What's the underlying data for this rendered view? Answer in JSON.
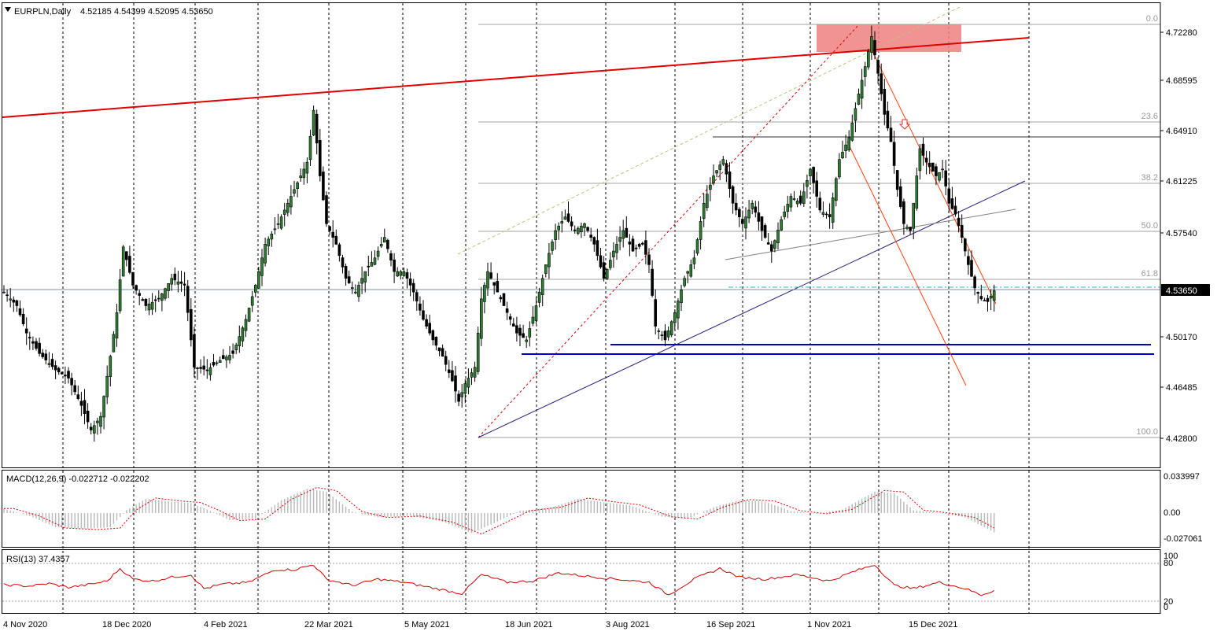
{
  "chart_data": {
    "type": "candlestick",
    "symbol": "EURPLN",
    "timeframe": "Daily",
    "header": {
      "title": "EURPLN,Daily",
      "open": "4.52185",
      "high": "4.54399",
      "low": "4.52095",
      "close": "4.53650"
    },
    "current_price": "4.53650",
    "y_ticks": [
      "4.72280",
      "4.68595",
      "4.64910",
      "4.61225",
      "4.57540",
      "4.50170",
      "4.46485",
      "4.42800"
    ],
    "ylim": [
      4.41,
      4.738
    ],
    "x_ticks": [
      "4 Nov 2020",
      "18 Dec 2020",
      "4 Feb 2021",
      "22 Mar 2021",
      "5 May 2021",
      "18 Jun 2021",
      "3 Aug 2021",
      "16 Sep 2021",
      "1 Nov 2021",
      "15 Dec 2021"
    ],
    "fibonacci": {
      "high": 4.7298,
      "low": 4.4298,
      "levels": [
        {
          "label": "0.0",
          "ratio": 0.0
        },
        {
          "label": "23.6",
          "ratio": 0.236
        },
        {
          "label": "38.2",
          "ratio": 0.382
        },
        {
          "label": "50.0",
          "ratio": 0.5
        },
        {
          "label": "61.8",
          "ratio": 0.618
        },
        {
          "label": "100.0",
          "ratio": 1.0
        }
      ]
    },
    "price_path": [
      {
        "x": 0,
        "y": 4.535
      },
      {
        "x": 4,
        "y": 4.525
      },
      {
        "x": 7,
        "y": 4.505
      },
      {
        "x": 11,
        "y": 4.49
      },
      {
        "x": 16,
        "y": 4.478
      },
      {
        "x": 20,
        "y": 4.472
      },
      {
        "x": 24,
        "y": 4.452
      },
      {
        "x": 27,
        "y": 4.434
      },
      {
        "x": 30,
        "y": 4.444
      },
      {
        "x": 33,
        "y": 4.488
      },
      {
        "x": 35,
        "y": 4.52
      },
      {
        "x": 37,
        "y": 4.568
      },
      {
        "x": 40,
        "y": 4.54
      },
      {
        "x": 44,
        "y": 4.525
      },
      {
        "x": 48,
        "y": 4.53
      },
      {
        "x": 52,
        "y": 4.545
      },
      {
        "x": 56,
        "y": 4.54
      },
      {
        "x": 59,
        "y": 4.48
      },
      {
        "x": 63,
        "y": 4.478
      },
      {
        "x": 67,
        "y": 4.485
      },
      {
        "x": 71,
        "y": 4.49
      },
      {
        "x": 75,
        "y": 4.515
      },
      {
        "x": 78,
        "y": 4.54
      },
      {
        "x": 81,
        "y": 4.57
      },
      {
        "x": 85,
        "y": 4.585
      },
      {
        "x": 88,
        "y": 4.6
      },
      {
        "x": 91,
        "y": 4.615
      },
      {
        "x": 94,
        "y": 4.63
      },
      {
        "x": 96,
        "y": 4.668
      },
      {
        "x": 98,
        "y": 4.62
      },
      {
        "x": 100,
        "y": 4.585
      },
      {
        "x": 103,
        "y": 4.57
      },
      {
        "x": 106,
        "y": 4.545
      },
      {
        "x": 109,
        "y": 4.535
      },
      {
        "x": 112,
        "y": 4.55
      },
      {
        "x": 115,
        "y": 4.56
      },
      {
        "x": 118,
        "y": 4.575
      },
      {
        "x": 121,
        "y": 4.55
      },
      {
        "x": 124,
        "y": 4.55
      },
      {
        "x": 127,
        "y": 4.535
      },
      {
        "x": 130,
        "y": 4.515
      },
      {
        "x": 133,
        "y": 4.5
      },
      {
        "x": 136,
        "y": 4.488
      },
      {
        "x": 139,
        "y": 4.47
      },
      {
        "x": 141,
        "y": 4.455
      },
      {
        "x": 143,
        "y": 4.468
      },
      {
        "x": 146,
        "y": 4.48
      },
      {
        "x": 148,
        "y": 4.53
      },
      {
        "x": 150,
        "y": 4.55
      },
      {
        "x": 153,
        "y": 4.535
      },
      {
        "x": 156,
        "y": 4.52
      },
      {
        "x": 159,
        "y": 4.505
      },
      {
        "x": 162,
        "y": 4.5
      },
      {
        "x": 165,
        "y": 4.525
      },
      {
        "x": 168,
        "y": 4.555
      },
      {
        "x": 171,
        "y": 4.58
      },
      {
        "x": 174,
        "y": 4.59
      },
      {
        "x": 177,
        "y": 4.58
      },
      {
        "x": 180,
        "y": 4.585
      },
      {
        "x": 183,
        "y": 4.57
      },
      {
        "x": 186,
        "y": 4.545
      },
      {
        "x": 189,
        "y": 4.565
      },
      {
        "x": 192,
        "y": 4.58
      },
      {
        "x": 195,
        "y": 4.565
      },
      {
        "x": 198,
        "y": 4.57
      },
      {
        "x": 200,
        "y": 4.555
      },
      {
        "x": 202,
        "y": 4.51
      },
      {
        "x": 205,
        "y": 4.5
      },
      {
        "x": 208,
        "y": 4.52
      },
      {
        "x": 211,
        "y": 4.545
      },
      {
        "x": 214,
        "y": 4.56
      },
      {
        "x": 217,
        "y": 4.6
      },
      {
        "x": 220,
        "y": 4.62
      },
      {
        "x": 223,
        "y": 4.632
      },
      {
        "x": 226,
        "y": 4.6
      },
      {
        "x": 229,
        "y": 4.585
      },
      {
        "x": 232,
        "y": 4.6
      },
      {
        "x": 235,
        "y": 4.58
      },
      {
        "x": 238,
        "y": 4.565
      },
      {
        "x": 241,
        "y": 4.588
      },
      {
        "x": 244,
        "y": 4.605
      },
      {
        "x": 247,
        "y": 4.6
      },
      {
        "x": 250,
        "y": 4.625
      },
      {
        "x": 253,
        "y": 4.595
      },
      {
        "x": 256,
        "y": 4.59
      },
      {
        "x": 259,
        "y": 4.632
      },
      {
        "x": 262,
        "y": 4.648
      },
      {
        "x": 265,
        "y": 4.68
      },
      {
        "x": 267,
        "y": 4.7
      },
      {
        "x": 269,
        "y": 4.722
      },
      {
        "x": 271,
        "y": 4.695
      },
      {
        "x": 273,
        "y": 4.665
      },
      {
        "x": 275,
        "y": 4.645
      },
      {
        "x": 277,
        "y": 4.61
      },
      {
        "x": 279,
        "y": 4.585
      },
      {
        "x": 281,
        "y": 4.58
      },
      {
        "x": 284,
        "y": 4.64
      },
      {
        "x": 286,
        "y": 4.63
      },
      {
        "x": 289,
        "y": 4.62
      },
      {
        "x": 291,
        "y": 4.625
      },
      {
        "x": 293,
        "y": 4.6
      },
      {
        "x": 295,
        "y": 4.592
      },
      {
        "x": 297,
        "y": 4.575
      },
      {
        "x": 299,
        "y": 4.555
      },
      {
        "x": 301,
        "y": 4.538
      },
      {
        "x": 303,
        "y": 4.53
      },
      {
        "x": 305,
        "y": 4.528
      },
      {
        "x": 307,
        "y": 4.536
      }
    ],
    "macd": {
      "label": "MACD(12,26,9) -0.022712 -0.022202",
      "y_ticks": [
        "0.033997",
        "0.00",
        "-0.027061"
      ],
      "ylim": [
        -0.03,
        0.036
      ],
      "path": [
        {
          "x": 0,
          "y": 0.006
        },
        {
          "x": 8,
          "y": -0.004
        },
        {
          "x": 16,
          "y": -0.02
        },
        {
          "x": 26,
          "y": -0.022
        },
        {
          "x": 33,
          "y": -0.02
        },
        {
          "x": 38,
          "y": 0.004
        },
        {
          "x": 44,
          "y": 0.02
        },
        {
          "x": 52,
          "y": 0.016
        },
        {
          "x": 58,
          "y": 0.014
        },
        {
          "x": 64,
          "y": 0.003
        },
        {
          "x": 70,
          "y": -0.01
        },
        {
          "x": 78,
          "y": -0.008
        },
        {
          "x": 86,
          "y": 0.018
        },
        {
          "x": 94,
          "y": 0.034
        },
        {
          "x": 100,
          "y": 0.03
        },
        {
          "x": 108,
          "y": 0.002
        },
        {
          "x": 116,
          "y": -0.006
        },
        {
          "x": 126,
          "y": -0.004
        },
        {
          "x": 136,
          "y": -0.012
        },
        {
          "x": 145,
          "y": -0.028
        },
        {
          "x": 152,
          "y": -0.014
        },
        {
          "x": 160,
          "y": 0.003
        },
        {
          "x": 170,
          "y": 0.008
        },
        {
          "x": 178,
          "y": 0.02
        },
        {
          "x": 186,
          "y": 0.015
        },
        {
          "x": 194,
          "y": 0.011
        },
        {
          "x": 204,
          "y": -0.005
        },
        {
          "x": 212,
          "y": -0.008
        },
        {
          "x": 220,
          "y": 0.008
        },
        {
          "x": 228,
          "y": 0.018
        },
        {
          "x": 236,
          "y": 0.016
        },
        {
          "x": 244,
          "y": 0.003
        },
        {
          "x": 252,
          "y": -0.001
        },
        {
          "x": 260,
          "y": 0.005
        },
        {
          "x": 270,
          "y": 0.03
        },
        {
          "x": 276,
          "y": 0.028
        },
        {
          "x": 282,
          "y": 0.004
        },
        {
          "x": 290,
          "y": 0.0
        },
        {
          "x": 298,
          "y": -0.006
        },
        {
          "x": 307,
          "y": -0.027
        }
      ]
    },
    "rsi": {
      "label": "RSI(13) 37.4357",
      "y_ticks": [
        "100",
        "80",
        "20",
        "0"
      ],
      "levels": [
        80,
        20
      ],
      "ylim": [
        0,
        100
      ],
      "path": [
        {
          "x": 0,
          "y": 46
        },
        {
          "x": 8,
          "y": 44
        },
        {
          "x": 14,
          "y": 48
        },
        {
          "x": 20,
          "y": 42
        },
        {
          "x": 26,
          "y": 46
        },
        {
          "x": 32,
          "y": 52
        },
        {
          "x": 36,
          "y": 72
        },
        {
          "x": 40,
          "y": 55
        },
        {
          "x": 46,
          "y": 52
        },
        {
          "x": 52,
          "y": 58
        },
        {
          "x": 58,
          "y": 62
        },
        {
          "x": 62,
          "y": 40
        },
        {
          "x": 68,
          "y": 47
        },
        {
          "x": 76,
          "y": 50
        },
        {
          "x": 84,
          "y": 70
        },
        {
          "x": 90,
          "y": 70
        },
        {
          "x": 96,
          "y": 78
        },
        {
          "x": 100,
          "y": 55
        },
        {
          "x": 108,
          "y": 45
        },
        {
          "x": 116,
          "y": 55
        },
        {
          "x": 124,
          "y": 50
        },
        {
          "x": 134,
          "y": 40
        },
        {
          "x": 142,
          "y": 32
        },
        {
          "x": 148,
          "y": 62
        },
        {
          "x": 156,
          "y": 50
        },
        {
          "x": 164,
          "y": 52
        },
        {
          "x": 172,
          "y": 65
        },
        {
          "x": 180,
          "y": 60
        },
        {
          "x": 190,
          "y": 55
        },
        {
          "x": 200,
          "y": 50
        },
        {
          "x": 206,
          "y": 30
        },
        {
          "x": 214,
          "y": 55
        },
        {
          "x": 222,
          "y": 72
        },
        {
          "x": 228,
          "y": 58
        },
        {
          "x": 236,
          "y": 55
        },
        {
          "x": 246,
          "y": 62
        },
        {
          "x": 256,
          "y": 52
        },
        {
          "x": 264,
          "y": 68
        },
        {
          "x": 270,
          "y": 78
        },
        {
          "x": 276,
          "y": 45
        },
        {
          "x": 282,
          "y": 40
        },
        {
          "x": 290,
          "y": 50
        },
        {
          "x": 298,
          "y": 40
        },
        {
          "x": 303,
          "y": 30
        },
        {
          "x": 307,
          "y": 37
        }
      ]
    }
  }
}
